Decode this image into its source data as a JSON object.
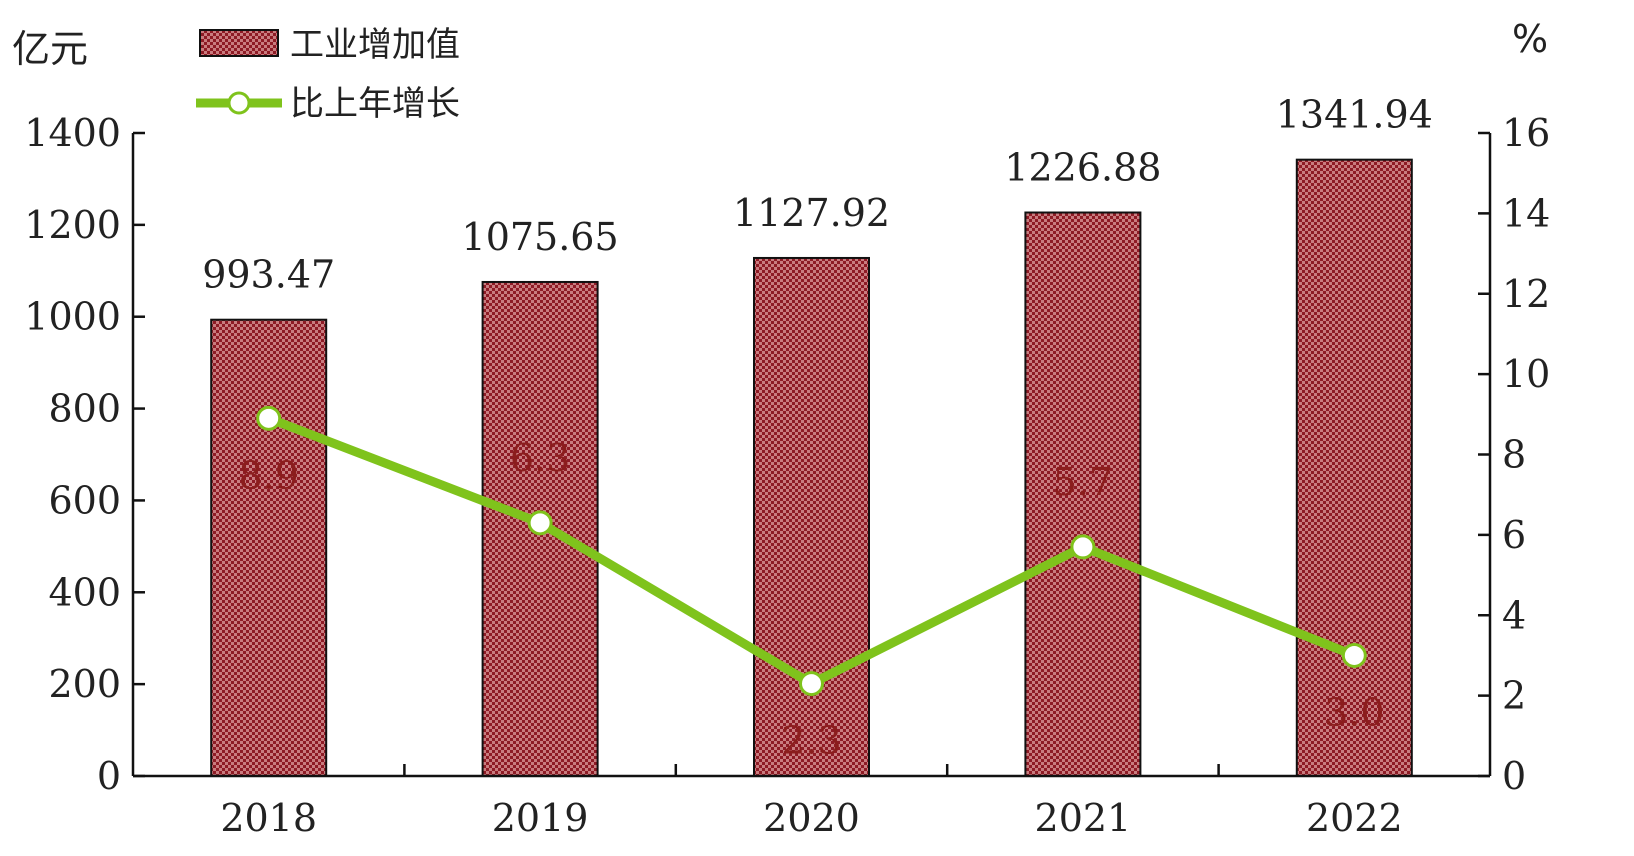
{
  "chart_data": {
    "type": "bar",
    "categories": [
      "2018",
      "2019",
      "2020",
      "2021",
      "2022"
    ],
    "series": [
      {
        "name": "工业增加值",
        "type": "bar",
        "axis": "left",
        "values": [
          993.47,
          1075.65,
          1127.92,
          1226.88,
          1341.94
        ],
        "labels": [
          "993.47",
          "1075.65",
          "1127.92",
          "1226.88",
          "1341.94"
        ],
        "color": "#b0323e"
      },
      {
        "name": "比上年增长",
        "type": "line",
        "axis": "right",
        "values": [
          8.9,
          6.3,
          2.3,
          5.7,
          3.0
        ],
        "labels": [
          "8.9",
          "6.3",
          "2.3",
          "5.7",
          "3.0"
        ],
        "color": "#7fc31c"
      }
    ],
    "left_axis": {
      "unit": "亿元",
      "range": [
        0,
        1400
      ],
      "ticks": [
        "0",
        "200",
        "400",
        "600",
        "800",
        "1000",
        "1200",
        "1400"
      ]
    },
    "right_axis": {
      "unit": "%",
      "range": [
        0,
        16
      ],
      "ticks": [
        "0",
        "2",
        "4",
        "6",
        "8",
        "10",
        "12",
        "14",
        "16"
      ]
    },
    "grid": false,
    "legend_position": "top-left"
  }
}
